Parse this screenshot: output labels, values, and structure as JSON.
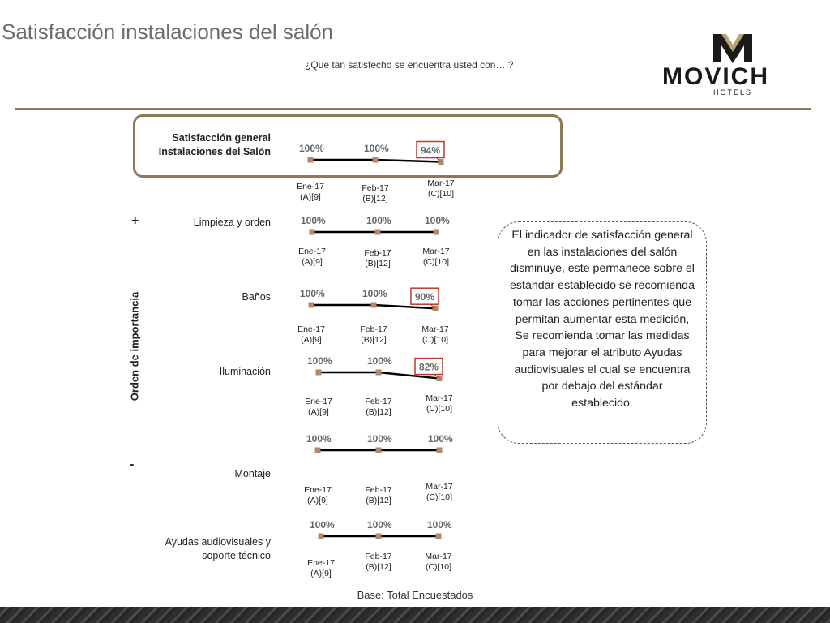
{
  "page": {
    "title": "Satisfacción instalaciones del salón",
    "subtitle": "¿Qué tan satisfecho se encuentra usted con… ?",
    "axis_label": "Orden de importancia",
    "plus_sign": "+",
    "minus_sign": "-",
    "base": "Base: Total Encuestados",
    "comment": "El indicador de satisfacción general en las instalaciones del salón disminuye, este permanece sobre el estándar establecido se recomienda tomar las acciones pertinentes que permitan aumentar esta medición, Se recomienda tomar las medidas para mejorar el atributo Ayudas audiovisuales el cual se encuentra por debajo del estándar establecido."
  },
  "logo": {
    "word": "MOVICH",
    "sub": "HOTELS"
  },
  "colors": {
    "accent": "#8b7a55",
    "marker": "#b5866a",
    "highlight_box": "#c0392b",
    "line": "#000000"
  },
  "chart_data": {
    "type": "line",
    "categories": [
      {
        "month": "Ene-17",
        "base": "(A)[9]"
      },
      {
        "month": "Feb-17",
        "base": "(B)[12]"
      },
      {
        "month": "Mar-17",
        "base": "(C)[10]"
      }
    ],
    "series": [
      {
        "name": "Satisfacción general Instalaciones del Salón",
        "label_lines": [
          "Satisfacción general",
          "Instalaciones del Salón"
        ],
        "values": [
          100,
          100,
          94
        ],
        "highlight": [
          false,
          false,
          true
        ]
      },
      {
        "name": "Limpieza y orden",
        "label_lines": [
          "Limpieza y orden"
        ],
        "values": [
          100,
          100,
          100
        ],
        "highlight": [
          false,
          false,
          false
        ]
      },
      {
        "name": "Baños",
        "label_lines": [
          "Baños"
        ],
        "values": [
          100,
          100,
          90
        ],
        "highlight": [
          false,
          false,
          true
        ]
      },
      {
        "name": "Iluminación",
        "label_lines": [
          "Iluminación"
        ],
        "values": [
          100,
          100,
          82
        ],
        "highlight": [
          false,
          false,
          true
        ]
      },
      {
        "name": "Montaje",
        "label_lines": [
          "Montaje"
        ],
        "values": [
          100,
          100,
          100
        ],
        "highlight": [
          false,
          false,
          false
        ]
      },
      {
        "name": "Ayudas audiovisuales y soporte técnico",
        "label_lines": [
          "Ayudas audiovisuales y",
          "soporte técnico"
        ],
        "values": [
          100,
          100,
          100
        ],
        "highlight": [
          false,
          false,
          false
        ]
      }
    ],
    "value_suffix": "%",
    "ylim": [
      0,
      100
    ]
  }
}
